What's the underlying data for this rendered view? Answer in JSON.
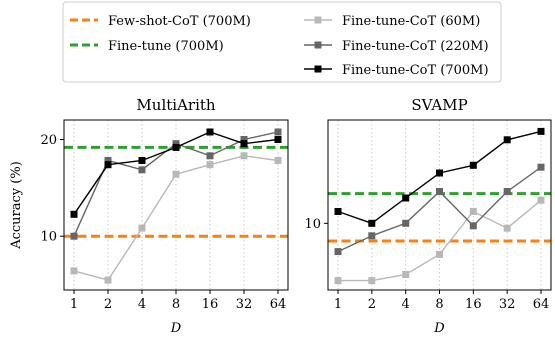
{
  "legend": {
    "entries": [
      {
        "label": "Few-shot-CoT (700M)",
        "color": "#ff7f0e",
        "style": "dashed"
      },
      {
        "label": "Fine-tune (700M)",
        "color": "#2ca02c",
        "style": "dashed"
      },
      {
        "label": "Fine-tune-CoT (60M)",
        "color": "#b8b8b8",
        "style": "line-square"
      },
      {
        "label": "Fine-tune-CoT (220M)",
        "color": "#666666",
        "style": "line-square"
      },
      {
        "label": "Fine-tune-CoT (700M)",
        "color": "#000000",
        "style": "line-square"
      }
    ]
  },
  "chart_data": [
    {
      "type": "line",
      "title": "MultiArith",
      "xlabel": "D",
      "ylabel": "Accuracy (%)",
      "x": [
        1,
        2,
        4,
        8,
        16,
        32,
        64
      ],
      "x_tick_labels": [
        "1",
        "2",
        "4",
        "8",
        "16",
        "32",
        "64"
      ],
      "y_scale": "log",
      "y_ticks": [
        10,
        20
      ],
      "y_tick_labels": [
        "10",
        "20"
      ],
      "ylim": [
        6.8,
        23.0
      ],
      "grid": "x-dotted",
      "series": [
        {
          "name": "Fine-tune-CoT (60M)",
          "color": "#b8b8b8",
          "values": [
            7.8,
            7.3,
            10.6,
            15.6,
            16.7,
            17.8,
            17.2
          ]
        },
        {
          "name": "Fine-tune-CoT (220M)",
          "color": "#666666",
          "values": [
            10.0,
            17.2,
            16.1,
            19.4,
            17.8,
            20.0,
            21.1
          ]
        },
        {
          "name": "Fine-tune-CoT (700M)",
          "color": "#000000",
          "values": [
            11.7,
            16.7,
            17.2,
            18.9,
            21.1,
            19.4,
            20.0
          ]
        }
      ],
      "baselines": [
        {
          "name": "Few-shot-CoT (700M)",
          "color": "#ff7f0e",
          "value": 10.0
        },
        {
          "name": "Fine-tune (700M)",
          "color": "#2ca02c",
          "value": 18.9
        }
      ]
    },
    {
      "type": "line",
      "title": "SVAMP",
      "xlabel": "D",
      "ylabel": "",
      "x": [
        1,
        2,
        4,
        8,
        16,
        32,
        64
      ],
      "x_tick_labels": [
        "1",
        "2",
        "4",
        "8",
        "16",
        "32",
        "64"
      ],
      "y_scale": "log",
      "y_ticks": [
        10
      ],
      "y_tick_labels": [
        "10"
      ],
      "ylim": [
        7.6,
        15.3
      ],
      "grid": "x-dotted",
      "series": [
        {
          "name": "Fine-tune-CoT (60M)",
          "color": "#b8b8b8",
          "values": [
            7.9,
            7.9,
            8.1,
            8.8,
            10.5,
            9.8,
            11.0
          ]
        },
        {
          "name": "Fine-tune-CoT (220M)",
          "color": "#666666",
          "values": [
            8.9,
            9.5,
            10.0,
            11.4,
            9.9,
            11.4,
            12.6
          ]
        },
        {
          "name": "Fine-tune-CoT (700M)",
          "color": "#000000",
          "values": [
            10.5,
            10.0,
            11.1,
            12.3,
            12.7,
            14.1,
            14.6
          ]
        }
      ],
      "baselines": [
        {
          "name": "Few-shot-CoT (700M)",
          "color": "#ff7f0e",
          "value": 9.3
        },
        {
          "name": "Fine-tune (700M)",
          "color": "#2ca02c",
          "value": 11.3
        }
      ]
    }
  ]
}
